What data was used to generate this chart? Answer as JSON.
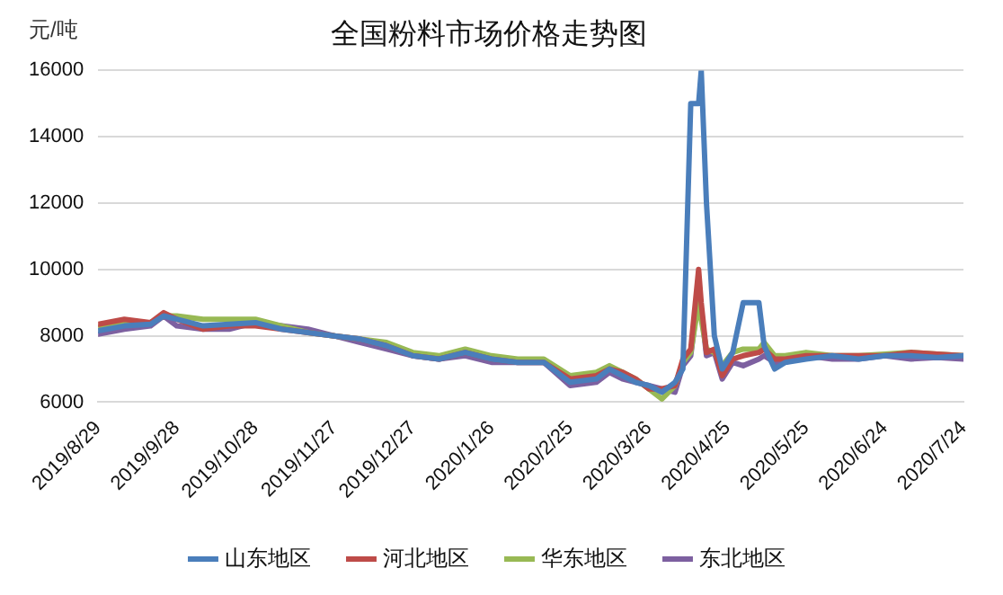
{
  "chart_data": {
    "type": "line",
    "title": "全国粉料市场价格走势图",
    "ylabel": "元/吨",
    "x": [
      "2019-08-29",
      "2019-09-08",
      "2019-09-18",
      "2019-09-23",
      "2019-09-28",
      "2019-10-08",
      "2019-10-18",
      "2019-10-28",
      "2019-11-07",
      "2019-11-17",
      "2019-11-27",
      "2019-12-07",
      "2019-12-17",
      "2019-12-27",
      "2020-01-06",
      "2020-01-16",
      "2020-01-26",
      "2020-02-05",
      "2020-02-15",
      "2020-02-25",
      "2020-03-06",
      "2020-03-11",
      "2020-03-16",
      "2020-03-21",
      "2020-03-26",
      "2020-03-31",
      "2020-04-05",
      "2020-04-08",
      "2020-04-11",
      "2020-04-14",
      "2020-04-15",
      "2020-04-17",
      "2020-04-20",
      "2020-04-23",
      "2020-04-27",
      "2020-05-01",
      "2020-05-07",
      "2020-05-09",
      "2020-05-13",
      "2020-05-17",
      "2020-05-25",
      "2020-06-04",
      "2020-06-14",
      "2020-06-24",
      "2020-07-04",
      "2020-07-14",
      "2020-07-24"
    ],
    "series": [
      {
        "name": "山东地区",
        "color": "#4a7ebb",
        "values": [
          8150,
          8300,
          8350,
          8600,
          8500,
          8300,
          8350,
          8400,
          8200,
          8100,
          8000,
          7900,
          7700,
          7400,
          7300,
          7500,
          7300,
          7200,
          7200,
          6600,
          6700,
          7000,
          6800,
          6600,
          6500,
          6300,
          6600,
          7000,
          15000,
          15000,
          16000,
          12000,
          8000,
          7000,
          7500,
          9000,
          9000,
          7700,
          7000,
          7200,
          7300,
          7400,
          7300,
          7400,
          7400,
          7350,
          7400
        ]
      },
      {
        "name": "河北地区",
        "color": "#be4b48",
        "values": [
          8350,
          8500,
          8400,
          8700,
          8500,
          8200,
          8300,
          8300,
          8200,
          8100,
          8000,
          7900,
          7700,
          7400,
          7300,
          7500,
          7300,
          7200,
          7200,
          6700,
          6800,
          7000,
          6900,
          6700,
          6400,
          6400,
          6500,
          7300,
          7600,
          10000,
          9000,
          7500,
          7600,
          6800,
          7300,
          7400,
          7500,
          7600,
          7300,
          7300,
          7400,
          7400,
          7400,
          7400,
          7500,
          7450,
          7400
        ]
      },
      {
        "name": "华东地区",
        "color": "#98b954",
        "values": [
          8250,
          8400,
          8400,
          8600,
          8600,
          8500,
          8500,
          8500,
          8300,
          8100,
          8000,
          7900,
          7800,
          7500,
          7400,
          7600,
          7400,
          7300,
          7300,
          6800,
          6900,
          7100,
          6900,
          6700,
          6400,
          6100,
          6500,
          7200,
          7500,
          9000,
          8500,
          7600,
          7500,
          7100,
          7500,
          7600,
          7600,
          7800,
          7400,
          7400,
          7500,
          7400,
          7400,
          7450,
          7500,
          7450,
          7400
        ]
      },
      {
        "name": "东北地区",
        "color": "#7d60a0",
        "values": [
          8050,
          8200,
          8300,
          8600,
          8300,
          8200,
          8200,
          8400,
          8300,
          8200,
          8000,
          7800,
          7600,
          7400,
          7300,
          7400,
          7200,
          7200,
          7200,
          6500,
          6600,
          6900,
          6700,
          6600,
          6500,
          6400,
          6300,
          7100,
          7400,
          9300,
          8800,
          7400,
          7500,
          6700,
          7200,
          7100,
          7300,
          7400,
          7200,
          7200,
          7400,
          7300,
          7300,
          7400,
          7300,
          7350,
          7300
        ]
      }
    ],
    "xlim": [
      "2019-08-29",
      "2020-07-24"
    ],
    "xticks": [
      {
        "value": "2019-08-29",
        "label": "2019/8/29"
      },
      {
        "value": "2019-09-28",
        "label": "2019/9/28"
      },
      {
        "value": "2019-10-28",
        "label": "2019/10/28"
      },
      {
        "value": "2019-11-27",
        "label": "2019/11/27"
      },
      {
        "value": "2019-12-27",
        "label": "2019/12/27"
      },
      {
        "value": "2020-01-26",
        "label": "2020/1/26"
      },
      {
        "value": "2020-02-25",
        "label": "2020/2/25"
      },
      {
        "value": "2020-03-26",
        "label": "2020/3/26"
      },
      {
        "value": "2020-04-25",
        "label": "2020/4/25"
      },
      {
        "value": "2020-05-25",
        "label": "2020/5/25"
      },
      {
        "value": "2020-06-24",
        "label": "2020/6/24"
      },
      {
        "value": "2020-07-24",
        "label": "2020/7/24"
      }
    ],
    "ylim": [
      6000,
      16000
    ],
    "yticks": [
      6000,
      8000,
      10000,
      12000,
      14000,
      16000
    ],
    "grid": "y",
    "legend": "bottom",
    "marker": "none",
    "line_style": "solid"
  }
}
